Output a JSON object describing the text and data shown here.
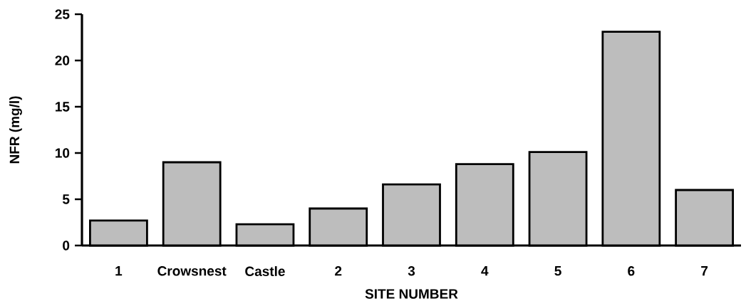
{
  "chart_data": {
    "type": "bar",
    "xlabel": "SITE NUMBER",
    "ylabel": "NFR (mg/l)",
    "categories": [
      "1",
      "Crowsnest",
      "Castle",
      "2",
      "3",
      "4",
      "5",
      "6",
      "7"
    ],
    "values": [
      2.7,
      9.0,
      2.3,
      4.0,
      6.6,
      8.8,
      10.1,
      23.1,
      6.0
    ],
    "color": "#bdbdbd",
    "ylim": [
      0,
      25
    ],
    "yticks": [
      0,
      5,
      10,
      15,
      20,
      25
    ]
  }
}
